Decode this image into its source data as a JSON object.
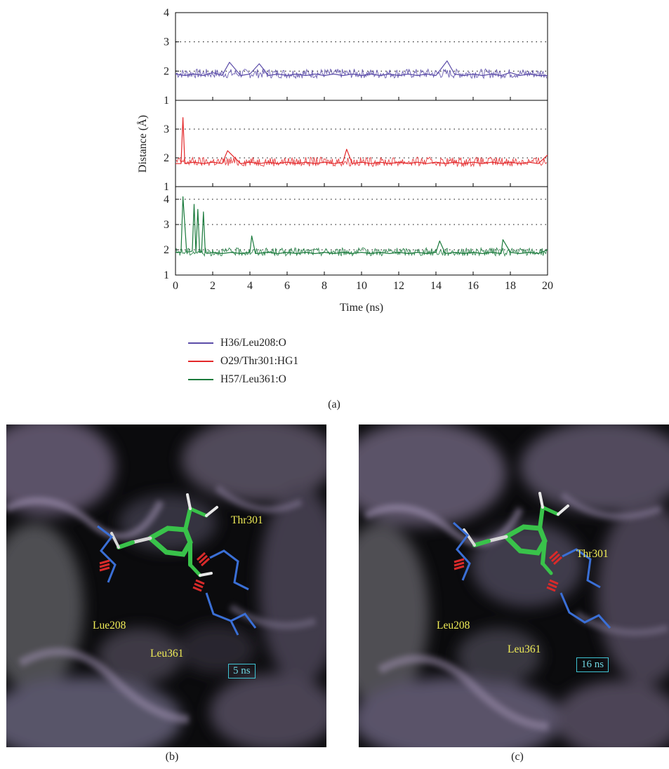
{
  "panel_a_label": "(a)",
  "panel_b_label": "(b)",
  "panel_c_label": "(c)",
  "chart_data": {
    "type": "line",
    "xlabel": "Time (ns)",
    "ylabel": "Distance (Å)",
    "xlim": [
      0,
      20
    ],
    "x_ticks": [
      0,
      2,
      4,
      6,
      8,
      10,
      12,
      14,
      16,
      18,
      20
    ],
    "grid": "dotted horizontal at 2, 3, 4",
    "legend_placement": "below",
    "subplots": [
      {
        "ylim": [
          1,
          4
        ],
        "y_ticks": [
          1,
          2,
          3,
          4
        ],
        "series": [
          {
            "name": "H36/Leu208:O",
            "color": "#5b4ca8",
            "x": [
              0,
              0.5,
              1,
              1.5,
              2,
              2.5,
              2.9,
              3.5,
              4,
              4.5,
              5,
              5.5,
              6,
              6.5,
              7,
              7.5,
              8,
              8.5,
              9,
              9.5,
              10,
              10.5,
              11,
              11.5,
              12,
              12.5,
              13,
              13.5,
              14,
              14.6,
              15,
              15.5,
              16,
              16.5,
              17,
              17.5,
              18,
              18.5,
              19,
              19.5,
              20
            ],
            "y": [
              1.9,
              1.85,
              1.9,
              1.85,
              1.95,
              1.85,
              2.3,
              1.85,
              1.9,
              2.25,
              1.85,
              1.9,
              1.85,
              1.9,
              1.85,
              1.9,
              1.85,
              1.9,
              1.85,
              1.9,
              1.85,
              1.9,
              1.85,
              1.9,
              1.85,
              1.9,
              1.85,
              1.9,
              1.85,
              2.35,
              1.9,
              1.85,
              1.9,
              1.85,
              1.9,
              1.85,
              1.95,
              1.85,
              1.9,
              1.85,
              1.85
            ]
          }
        ]
      },
      {
        "ylim": [
          1,
          4
        ],
        "y_ticks": [
          1,
          2,
          3
        ],
        "series": [
          {
            "name": "O29/Thr301:HG1",
            "color": "#e3282a",
            "x": [
              0,
              0.3,
              0.4,
              0.5,
              1,
              1.5,
              2,
              2.5,
              2.8,
              3.5,
              4,
              4.5,
              5,
              5.5,
              6,
              6.5,
              7,
              7.5,
              8,
              8.5,
              9,
              9.2,
              9.5,
              10,
              10.5,
              11,
              11.5,
              12,
              12.5,
              13,
              13.5,
              14,
              14.5,
              15,
              15.5,
              16,
              16.5,
              17,
              17.5,
              18,
              18.5,
              19,
              19.5,
              20
            ],
            "y": [
              1.8,
              1.8,
              3.4,
              1.8,
              1.85,
              1.8,
              1.85,
              1.8,
              2.25,
              1.8,
              1.85,
              1.8,
              1.85,
              1.8,
              1.85,
              1.8,
              1.85,
              1.8,
              1.85,
              1.8,
              1.85,
              2.3,
              1.8,
              1.85,
              1.8,
              1.85,
              1.8,
              1.85,
              1.8,
              1.85,
              1.8,
              1.85,
              1.8,
              1.85,
              1.8,
              1.85,
              1.8,
              1.85,
              1.8,
              1.85,
              1.8,
              1.85,
              1.8,
              2.1
            ]
          }
        ]
      },
      {
        "ylim": [
          1,
          4.5
        ],
        "y_ticks": [
          1,
          2,
          3,
          4
        ],
        "series": [
          {
            "name": "H57/Leu361:O",
            "color": "#1a7a3c",
            "x": [
              0,
              0.3,
              0.4,
              0.6,
              0.9,
              1.0,
              1.1,
              1.2,
              1.3,
              1.4,
              1.5,
              1.6,
              1.7,
              2,
              2.5,
              3,
              3.5,
              4,
              4.1,
              4.3,
              5,
              5.5,
              6,
              6.5,
              7,
              7.5,
              8,
              8.5,
              9,
              9.5,
              10,
              10.5,
              11,
              11.5,
              12,
              12.5,
              13,
              13.5,
              14,
              14.2,
              14.5,
              15,
              15.5,
              16,
              16.5,
              17,
              17.5,
              17.6,
              18,
              18.5,
              19,
              19.5,
              20
            ],
            "y": [
              1.9,
              1.9,
              4.1,
              1.9,
              1.95,
              3.8,
              1.9,
              3.6,
              1.9,
              1.9,
              3.5,
              1.9,
              1.85,
              1.9,
              1.85,
              1.9,
              1.85,
              1.9,
              2.55,
              1.85,
              1.9,
              1.85,
              1.9,
              1.85,
              1.9,
              1.85,
              1.9,
              1.85,
              1.9,
              1.85,
              1.9,
              1.85,
              1.9,
              1.85,
              1.9,
              1.85,
              1.9,
              1.85,
              1.9,
              2.35,
              1.85,
              1.9,
              1.85,
              1.9,
              1.85,
              1.9,
              1.85,
              2.4,
              1.9,
              1.85,
              1.9,
              1.85,
              2.0
            ]
          }
        ]
      }
    ]
  },
  "panel_b": {
    "residues": [
      "Thr301",
      "Lue208",
      "Leu361"
    ],
    "time": "5 ns"
  },
  "panel_c": {
    "residues": [
      "Thr301",
      "Leu208",
      "Leu361"
    ],
    "time": "16 ns"
  }
}
